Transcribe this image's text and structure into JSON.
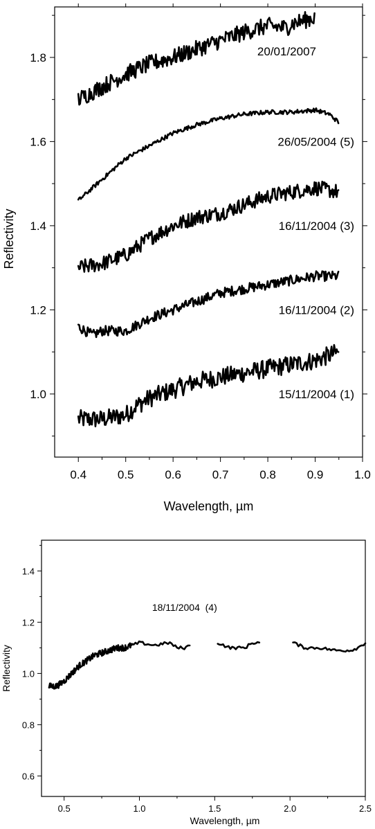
{
  "chart_data": [
    {
      "type": "line",
      "title": "",
      "xlabel": "Wavelength, µm",
      "ylabel": "Reflectivity",
      "xlim": [
        0.35,
        1.0
      ],
      "ylim": [
        0.85,
        1.92
      ],
      "xticks": [
        "0.4",
        "0.5",
        "0.6",
        "0.7",
        "0.8",
        "0.9",
        "1.0"
      ],
      "yticks": [
        "1.0",
        "1.2",
        "1.4",
        "1.6",
        "1.8"
      ],
      "grid": false,
      "legend": "none",
      "series": [
        {
          "name": "15/11/2004 (1)",
          "noise": 0.022,
          "points": [
            [
              0.4,
              0.94
            ],
            [
              0.45,
              0.94
            ],
            [
              0.5,
              0.95
            ],
            [
              0.52,
              0.97
            ],
            [
              0.55,
              0.99
            ],
            [
              0.6,
              1.01
            ],
            [
              0.65,
              1.03
            ],
            [
              0.7,
              1.04
            ],
            [
              0.75,
              1.05
            ],
            [
              0.8,
              1.06
            ],
            [
              0.85,
              1.07
            ],
            [
              0.9,
              1.08
            ],
            [
              0.95,
              1.1
            ]
          ]
        },
        {
          "name": "16/11/2004 (2)",
          "noise": 0.012,
          "points": [
            [
              0.4,
              1.16
            ],
            [
              0.43,
              1.14
            ],
            [
              0.45,
              1.15
            ],
            [
              0.5,
              1.15
            ],
            [
              0.55,
              1.18
            ],
            [
              0.6,
              1.2
            ],
            [
              0.65,
              1.22
            ],
            [
              0.7,
              1.24
            ],
            [
              0.75,
              1.25
            ],
            [
              0.8,
              1.26
            ],
            [
              0.85,
              1.27
            ],
            [
              0.9,
              1.28
            ],
            [
              0.95,
              1.28
            ]
          ]
        },
        {
          "name": "16/11/2004 (3)",
          "noise": 0.018,
          "points": [
            [
              0.4,
              1.3
            ],
            [
              0.45,
              1.31
            ],
            [
              0.5,
              1.33
            ],
            [
              0.55,
              1.37
            ],
            [
              0.6,
              1.4
            ],
            [
              0.65,
              1.42
            ],
            [
              0.7,
              1.43
            ],
            [
              0.75,
              1.45
            ],
            [
              0.8,
              1.47
            ],
            [
              0.85,
              1.48
            ],
            [
              0.9,
              1.49
            ],
            [
              0.95,
              1.48
            ]
          ]
        },
        {
          "name": "26/05/2004 (5)",
          "noise": 0.005,
          "points": [
            [
              0.4,
              1.46
            ],
            [
              0.45,
              1.51
            ],
            [
              0.5,
              1.56
            ],
            [
              0.55,
              1.59
            ],
            [
              0.6,
              1.62
            ],
            [
              0.65,
              1.64
            ],
            [
              0.7,
              1.655
            ],
            [
              0.75,
              1.665
            ],
            [
              0.8,
              1.67
            ],
            [
              0.85,
              1.67
            ],
            [
              0.9,
              1.675
            ],
            [
              0.93,
              1.665
            ],
            [
              0.95,
              1.645
            ]
          ]
        },
        {
          "name": "20/01/2007",
          "noise": 0.02,
          "points": [
            [
              0.4,
              1.7
            ],
            [
              0.45,
              1.73
            ],
            [
              0.5,
              1.76
            ],
            [
              0.55,
              1.785
            ],
            [
              0.6,
              1.8
            ],
            [
              0.65,
              1.82
            ],
            [
              0.7,
              1.84
            ],
            [
              0.75,
              1.86
            ],
            [
              0.8,
              1.875
            ],
            [
              0.84,
              1.87
            ],
            [
              0.85,
              1.88
            ],
            [
              0.9,
              1.895
            ]
          ]
        }
      ]
    },
    {
      "type": "line",
      "title": "",
      "xlabel": "Wavelength, µm",
      "ylabel": "Reflectivity",
      "xlim": [
        0.35,
        2.5
      ],
      "ylim": [
        0.52,
        1.52
      ],
      "xticks": [
        "0.5",
        "1.0",
        "1.5",
        "2.0",
        "2.5"
      ],
      "yticks": [
        "0.6",
        "0.8",
        "1.0",
        "1.2",
        "1.4"
      ],
      "grid": false,
      "legend": "none",
      "series": [
        {
          "name": "18/11/2004  (4)",
          "noise_visible": 0.012,
          "noise_ir": 0.006,
          "segments": [
            [
              [
                0.4,
                0.95
              ],
              [
                0.45,
                0.95
              ],
              [
                0.5,
                0.97
              ],
              [
                0.55,
                1.0
              ],
              [
                0.6,
                1.03
              ],
              [
                0.65,
                1.05
              ],
              [
                0.7,
                1.07
              ],
              [
                0.75,
                1.08
              ],
              [
                0.8,
                1.09
              ],
              [
                0.85,
                1.1
              ],
              [
                0.9,
                1.1
              ],
              [
                0.95,
                1.11
              ]
            ],
            [
              [
                0.95,
                1.11
              ],
              [
                1.0,
                1.12
              ],
              [
                1.1,
                1.11
              ],
              [
                1.2,
                1.12
              ],
              [
                1.25,
                1.1
              ],
              [
                1.3,
                1.1
              ],
              [
                1.34,
                1.11
              ]
            ],
            [
              [
                1.52,
                1.12
              ],
              [
                1.6,
                1.1
              ],
              [
                1.7,
                1.1
              ],
              [
                1.75,
                1.12
              ],
              [
                1.8,
                1.12
              ]
            ],
            [
              [
                2.02,
                1.12
              ],
              [
                2.1,
                1.1
              ],
              [
                2.2,
                1.1
              ],
              [
                2.3,
                1.09
              ],
              [
                2.4,
                1.09
              ],
              [
                2.45,
                1.1
              ],
              [
                2.5,
                1.12
              ]
            ]
          ]
        }
      ]
    }
  ]
}
